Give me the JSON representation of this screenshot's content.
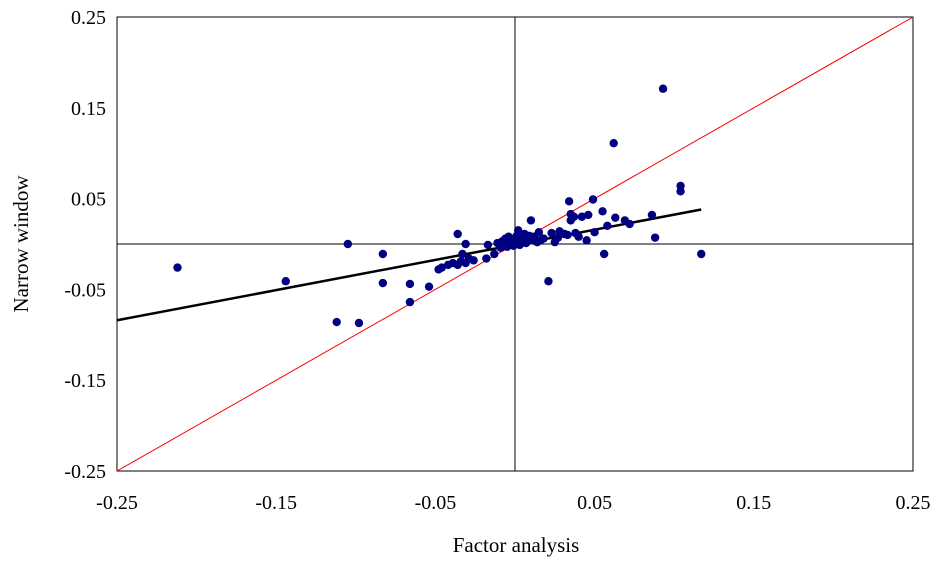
{
  "chart_data": {
    "type": "scatter",
    "title": "",
    "xlabel": "Factor analysis",
    "ylabel": "Narrow window",
    "xlim": [
      -0.25,
      0.25
    ],
    "ylim": [
      -0.25,
      0.25
    ],
    "x_ticks": [
      -0.25,
      -0.15,
      -0.05,
      0.05,
      0.15,
      0.25
    ],
    "y_ticks": [
      -0.25,
      -0.15,
      -0.05,
      0.05,
      0.15,
      0.25
    ],
    "x_tick_labels": [
      "-0.25",
      "-0.15",
      "-0.05",
      "0.05",
      "0.15",
      "0.25"
    ],
    "y_tick_labels": [
      "-0.25",
      "-0.15",
      "-0.05",
      "0.05",
      "0.15",
      "0.25"
    ],
    "grid": false,
    "zero_lines": true,
    "colors": {
      "points": "#000080",
      "identity_line": "#ff0000",
      "fit_line": "#000000",
      "zero_lines": "#000000",
      "frame": "#000000"
    },
    "series": [
      {
        "values": [
          [
            -0.212,
            -0.026
          ],
          [
            -0.144,
            -0.041
          ],
          [
            -0.105,
            0.0
          ],
          [
            -0.112,
            -0.086
          ],
          [
            -0.098,
            -0.087
          ],
          [
            -0.083,
            -0.011
          ],
          [
            -0.083,
            -0.043
          ],
          [
            -0.066,
            -0.044
          ],
          [
            -0.066,
            -0.064
          ],
          [
            -0.054,
            -0.047
          ],
          [
            -0.048,
            -0.028
          ],
          [
            -0.046,
            -0.026
          ],
          [
            -0.042,
            -0.023
          ],
          [
            -0.039,
            -0.021
          ],
          [
            -0.036,
            -0.023
          ],
          [
            -0.036,
            0.011
          ],
          [
            -0.034,
            -0.019
          ],
          [
            -0.033,
            -0.011
          ],
          [
            -0.031,
            -0.021
          ],
          [
            -0.031,
            0.0
          ],
          [
            -0.029,
            -0.016
          ],
          [
            -0.026,
            -0.018
          ],
          [
            -0.018,
            -0.016
          ],
          [
            -0.017,
            -0.001
          ],
          [
            -0.013,
            -0.011
          ],
          [
            -0.011,
            0.001
          ],
          [
            -0.009,
            -0.004
          ],
          [
            -0.008,
            0.003
          ],
          [
            -0.006,
            0.006
          ],
          [
            -0.005,
            -0.003
          ],
          [
            -0.004,
            0.008
          ],
          [
            -0.003,
            0.001
          ],
          [
            -0.002,
            0.005
          ],
          [
            -0.001,
            -0.002
          ],
          [
            0.0,
            0.004
          ],
          [
            0.001,
            0.009
          ],
          [
            0.002,
            0.015
          ],
          [
            0.003,
            -0.001
          ],
          [
            0.004,
            0.003
          ],
          [
            0.005,
            0.006
          ],
          [
            0.006,
            0.011
          ],
          [
            0.007,
            0.001
          ],
          [
            0.008,
            0.004
          ],
          [
            0.009,
            0.009
          ],
          [
            0.01,
            0.026
          ],
          [
            0.011,
            0.005
          ],
          [
            0.012,
            0.008
          ],
          [
            0.013,
            0.003
          ],
          [
            0.014,
            0.002
          ],
          [
            0.015,
            0.013
          ],
          [
            0.016,
            0.004
          ],
          [
            0.018,
            0.006
          ],
          [
            0.021,
            -0.041
          ],
          [
            0.023,
            0.012
          ],
          [
            0.025,
            0.002
          ],
          [
            0.027,
            0.007
          ],
          [
            0.028,
            0.014
          ],
          [
            0.031,
            0.011
          ],
          [
            0.033,
            0.01
          ],
          [
            0.034,
            0.047
          ],
          [
            0.035,
            0.026
          ],
          [
            0.035,
            0.033
          ],
          [
            0.037,
            0.03
          ],
          [
            0.038,
            0.012
          ],
          [
            0.04,
            0.008
          ],
          [
            0.042,
            0.03
          ],
          [
            0.045,
            0.004
          ],
          [
            0.046,
            0.032
          ],
          [
            0.049,
            0.049
          ],
          [
            0.05,
            0.013
          ],
          [
            0.055,
            0.036
          ],
          [
            0.056,
            -0.011
          ],
          [
            0.058,
            0.02
          ],
          [
            0.062,
            0.111
          ],
          [
            0.063,
            0.029
          ],
          [
            0.069,
            0.026
          ],
          [
            0.072,
            0.022
          ],
          [
            0.086,
            0.032
          ],
          [
            0.088,
            0.007
          ],
          [
            0.093,
            0.171
          ],
          [
            0.104,
            0.058
          ],
          [
            0.104,
            0.064
          ],
          [
            0.117,
            -0.011
          ]
        ]
      }
    ],
    "reference_lines": [
      {
        "kind": "identity",
        "from": [
          -0.25,
          -0.25
        ],
        "to": [
          0.25,
          0.25
        ]
      },
      {
        "kind": "fit",
        "from": [
          -0.25,
          -0.084
        ],
        "to": [
          0.117,
          0.038
        ]
      }
    ]
  }
}
